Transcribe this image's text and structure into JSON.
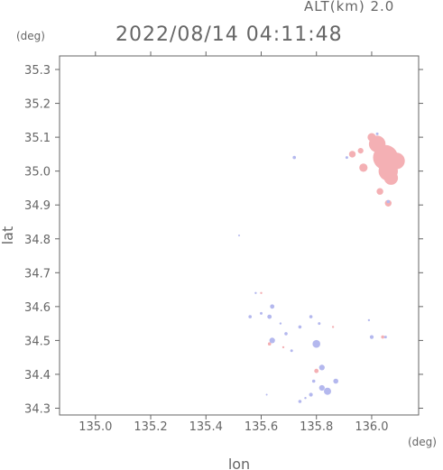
{
  "header": {
    "alt_text": "ALT(km) 2.0",
    "datetime": "2022/08/14 04:11:48",
    "y_unit": "(deg)",
    "x_unit": "(deg)"
  },
  "chart_data": {
    "type": "scatter",
    "title": "2022/08/14 04:11:48",
    "xlabel": "lon",
    "ylabel": "lat",
    "xlim": [
      134.87,
      136.17
    ],
    "ylim": [
      34.28,
      35.34
    ],
    "x_ticks": [
      "135.0",
      "135.2",
      "135.4",
      "135.6",
      "135.8",
      "136.0"
    ],
    "x_tick_values": [
      135.0,
      135.2,
      135.4,
      135.6,
      135.8,
      136.0
    ],
    "y_ticks": [
      "34.3",
      "34.4",
      "34.5",
      "34.6",
      "34.7",
      "34.8",
      "34.9",
      "35.0",
      "35.1",
      "35.2",
      "35.3"
    ],
    "y_tick_values": [
      34.3,
      34.4,
      34.5,
      34.6,
      34.7,
      34.8,
      34.9,
      35.0,
      35.1,
      35.2,
      35.3
    ],
    "grid": false,
    "colors": {
      "positive": "#f4b0b4",
      "negative": "#b4b8ee",
      "axis": "#666666"
    },
    "series": [
      {
        "sign": "positive",
        "points": [
          [
            136.05,
            35.04,
            0.045
          ],
          [
            136.06,
            35.0,
            0.035
          ],
          [
            136.02,
            35.08,
            0.03
          ],
          [
            136.09,
            35.03,
            0.03
          ],
          [
            136.07,
            34.98,
            0.025
          ],
          [
            136.0,
            35.1,
            0.015
          ],
          [
            135.97,
            35.01,
            0.015
          ],
          [
            135.93,
            35.05,
            0.012
          ],
          [
            135.96,
            35.06,
            0.01
          ],
          [
            136.03,
            34.94,
            0.012
          ],
          [
            136.06,
            34.905,
            0.012
          ],
          [
            135.8,
            34.41,
            0.008
          ],
          [
            135.63,
            34.49,
            0.006
          ],
          [
            135.68,
            34.48,
            0.004
          ],
          [
            135.56,
            34.57,
            0.005
          ],
          [
            135.6,
            34.64,
            0.004
          ],
          [
            136.04,
            34.51,
            0.006
          ],
          [
            135.86,
            34.54,
            0.004
          ]
        ]
      },
      {
        "sign": "negative",
        "points": [
          [
            135.8,
            34.49,
            0.014
          ],
          [
            135.84,
            34.35,
            0.013
          ],
          [
            135.82,
            34.42,
            0.01
          ],
          [
            135.82,
            34.36,
            0.01
          ],
          [
            135.78,
            34.34,
            0.007
          ],
          [
            135.87,
            34.38,
            0.009
          ],
          [
            135.74,
            34.32,
            0.006
          ],
          [
            135.79,
            34.38,
            0.006
          ],
          [
            135.64,
            34.5,
            0.01
          ],
          [
            135.63,
            34.57,
            0.008
          ],
          [
            135.64,
            34.6,
            0.008
          ],
          [
            135.6,
            34.58,
            0.005
          ],
          [
            135.56,
            34.57,
            0.006
          ],
          [
            135.69,
            34.52,
            0.006
          ],
          [
            135.71,
            34.47,
            0.005
          ],
          [
            135.67,
            34.55,
            0.004
          ],
          [
            135.74,
            34.54,
            0.006
          ],
          [
            135.78,
            34.57,
            0.006
          ],
          [
            135.81,
            34.55,
            0.005
          ],
          [
            136.0,
            34.51,
            0.007
          ],
          [
            135.99,
            34.56,
            0.004
          ],
          [
            136.05,
            34.51,
            0.005
          ],
          [
            135.72,
            35.04,
            0.006
          ],
          [
            135.91,
            35.04,
            0.005
          ],
          [
            135.52,
            34.81,
            0.003
          ],
          [
            135.58,
            34.64,
            0.004
          ],
          [
            135.76,
            34.33,
            0.004
          ],
          [
            135.62,
            34.34,
            0.003
          ],
          [
            136.06,
            34.91,
            0.006
          ],
          [
            136.02,
            35.11,
            0.005
          ]
        ]
      }
    ]
  }
}
